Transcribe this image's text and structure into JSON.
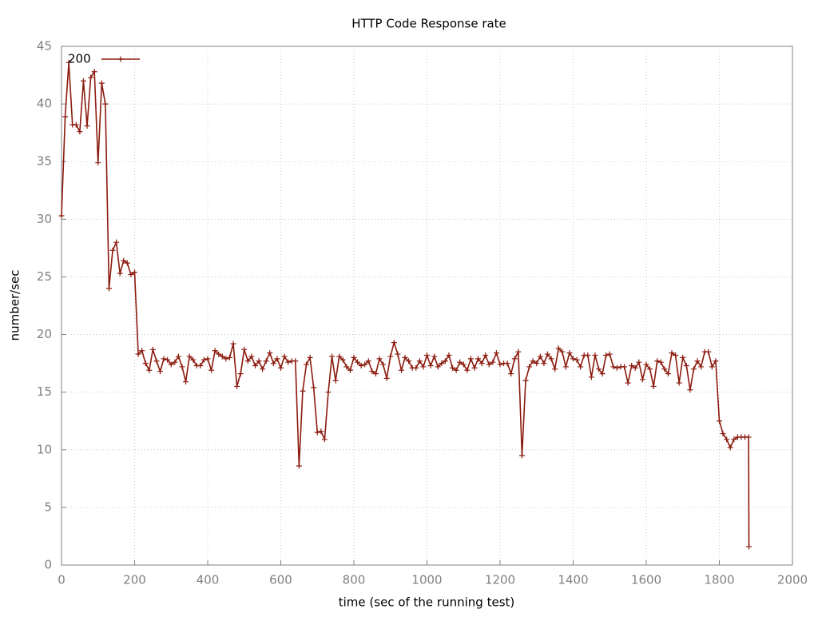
{
  "chart_data": {
    "type": "line",
    "title": "HTTP Code Response rate",
    "x_label": "time (sec of the running test)",
    "y_label": "number/sec",
    "xlim": [
      0,
      2000
    ],
    "xticks": [
      0,
      200,
      400,
      600,
      800,
      1000,
      1200,
      1400,
      1600,
      1800,
      2000
    ],
    "ylim": [
      0,
      45
    ],
    "yticks": [
      0,
      5,
      10,
      15,
      20,
      25,
      30,
      35,
      40,
      45
    ],
    "grid": true,
    "legend": "top-left",
    "x": [
      0,
      10,
      20,
      30,
      40,
      50,
      60,
      70,
      80,
      90,
      100,
      110,
      120,
      130,
      140,
      150,
      160,
      170,
      180,
      190,
      200,
      210,
      220,
      230,
      240,
      250,
      260,
      270,
      280,
      290,
      300,
      310,
      320,
      330,
      340,
      350,
      360,
      370,
      380,
      390,
      400,
      410,
      420,
      430,
      440,
      450,
      460,
      470,
      480,
      490,
      500,
      510,
      520,
      530,
      540,
      550,
      560,
      570,
      580,
      590,
      600,
      610,
      620,
      630,
      640,
      650,
      660,
      670,
      680,
      690,
      700,
      710,
      720,
      730,
      740,
      750,
      760,
      770,
      780,
      790,
      800,
      810,
      820,
      830,
      840,
      850,
      860,
      870,
      880,
      890,
      900,
      910,
      920,
      930,
      940,
      950,
      960,
      970,
      980,
      990,
      1000,
      1010,
      1020,
      1030,
      1040,
      1050,
      1060,
      1070,
      1080,
      1090,
      1100,
      1110,
      1120,
      1130,
      1140,
      1150,
      1160,
      1170,
      1180,
      1190,
      1200,
      1210,
      1220,
      1230,
      1240,
      1250,
      1260,
      1270,
      1280,
      1290,
      1300,
      1310,
      1320,
      1330,
      1340,
      1350,
      1360,
      1370,
      1380,
      1390,
      1400,
      1410,
      1420,
      1430,
      1440,
      1450,
      1460,
      1470,
      1480,
      1490,
      1500,
      1510,
      1520,
      1530,
      1540,
      1550,
      1560,
      1570,
      1580,
      1590,
      1600,
      1610,
      1620,
      1630,
      1640,
      1650,
      1660,
      1670,
      1680,
      1690,
      1700,
      1710,
      1720,
      1730,
      1740,
      1750,
      1760,
      1770,
      1780,
      1790,
      1800,
      1810,
      1820,
      1830,
      1840,
      1850,
      1860,
      1870,
      1880,
      1881
    ],
    "series": [
      {
        "name": "200",
        "color": "#8b1a0e",
        "values": [
          30.3,
          38.9,
          43.6,
          38.2,
          38.2,
          37.6,
          42,
          38.1,
          42.3,
          42.8,
          34.9,
          41.8,
          40,
          24,
          27.3,
          28,
          25.3,
          26.4,
          26.2,
          25.2,
          25.4,
          18.3,
          18.6,
          17.5,
          16.9,
          18.7,
          17.7,
          16.8,
          17.9,
          17.8,
          17.4,
          17.6,
          18.1,
          17.2,
          15.9,
          18.1,
          17.8,
          17.3,
          17.3,
          17.8,
          17.9,
          16.9,
          18.6,
          18.3,
          18.1,
          17.9,
          18,
          19.2,
          15.5,
          16.6,
          18.7,
          17.7,
          18.1,
          17.3,
          17.7,
          17,
          17.7,
          18.4,
          17.5,
          17.9,
          17.1,
          18.1,
          17.6,
          17.7,
          17.7,
          8.6,
          15.1,
          17.4,
          18,
          15.4,
          11.5,
          11.6,
          10.9,
          15,
          18.1,
          16,
          18.1,
          17.8,
          17.2,
          16.9,
          18,
          17.6,
          17.3,
          17.4,
          17.7,
          16.8,
          16.6,
          17.9,
          17.4,
          16.2,
          18.1,
          19.3,
          18.3,
          16.9,
          18,
          17.7,
          17.1,
          17.1,
          17.7,
          17.2,
          18.2,
          17.3,
          18.1,
          17.2,
          17.5,
          17.7,
          18.2,
          17.1,
          16.9,
          17.6,
          17.4,
          16.9,
          17.9,
          17.1,
          17.9,
          17.5,
          18.2,
          17.4,
          17.6,
          18.4,
          17.4,
          17.5,
          17.5,
          16.6,
          17.9,
          18.5,
          9.5,
          16,
          17.2,
          17.7,
          17.5,
          18.1,
          17.5,
          18.3,
          17.9,
          17,
          18.8,
          18.5,
          17.2,
          18.4,
          17.9,
          17.8,
          17.2,
          18.2,
          18.2,
          16.3,
          18.2,
          17,
          16.6,
          18.2,
          18.3,
          17.2,
          17.1,
          17.2,
          17.2,
          15.8,
          17.3,
          17.1,
          17.6,
          16.1,
          17.4,
          17,
          15.5,
          17.7,
          17.6,
          17,
          16.6,
          18.4,
          18.2,
          15.8,
          18,
          17.3,
          15.2,
          17,
          17.7,
          17.2,
          18.5,
          18.5,
          17.2,
          17.7,
          12.5,
          11.4,
          10.9,
          10.2,
          10.9,
          11.1,
          11.1,
          11.1,
          11.1,
          1.6
        ]
      }
    ]
  }
}
